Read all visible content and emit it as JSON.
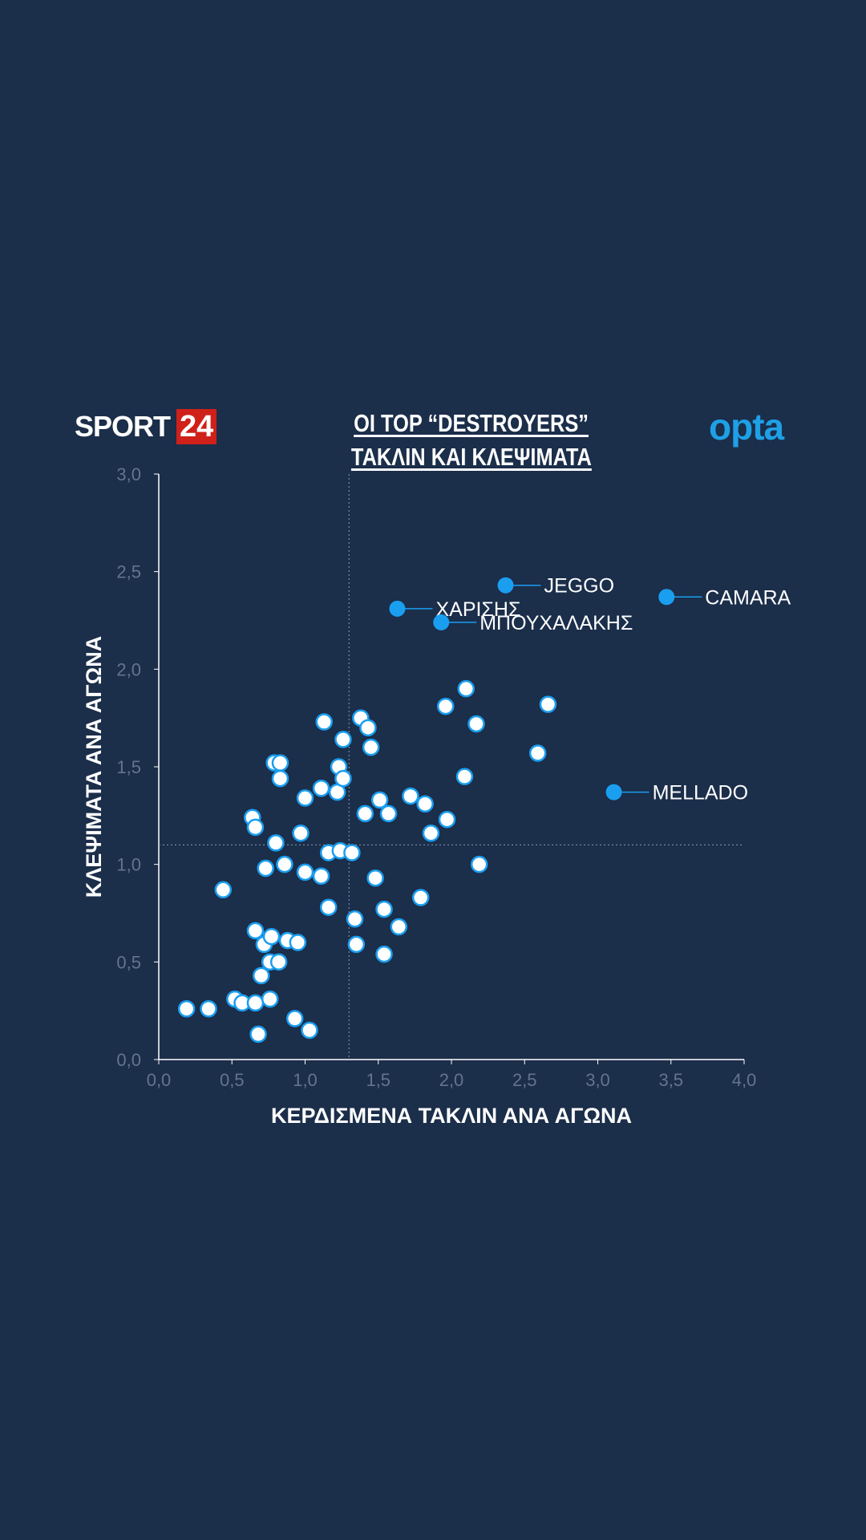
{
  "header": {
    "logo_sport": "SPORT",
    "logo_num": "24",
    "title_line1": "ΟΙ TOP “DESTROYERS”",
    "title_line2": "ΤΑΚΛΙΝ ΚΑΙ ΚΛΕΨΙΜΑΤΑ",
    "opta": "opta"
  },
  "chart_data": {
    "type": "scatter",
    "title": "ΟΙ TOP “DESTROYERS” ΤΑΚΛΙΝ ΚΑΙ ΚΛΕΨΙΜΑΤΑ",
    "xlabel": "ΚΕΡΔΙΣΜΕΝΑ ΤΑΚΛΙΝ ΑΝΑ ΑΓΩΝΑ",
    "ylabel": "ΚΛΕΨΙΜΑΤΑ ΑΝΑ ΑΓΩΝΑ",
    "xlim": [
      0,
      4
    ],
    "ylim": [
      0,
      3
    ],
    "xticks": [
      "0,0",
      "0,5",
      "1,0",
      "1,5",
      "2,0",
      "2,5",
      "3,0",
      "3,5",
      "4,0"
    ],
    "yticks": [
      "0,0",
      "0,5",
      "1,0",
      "1,5",
      "2,0",
      "2,5",
      "3,0"
    ],
    "reference_lines": {
      "x": 1.3,
      "y": 1.1
    },
    "colors": {
      "point_fill": "#ffffff",
      "point_stroke": "#1a9ef0",
      "highlight": "#1a9ef0",
      "background": "#1b2e4a"
    },
    "points": [
      [
        0.19,
        0.26
      ],
      [
        0.34,
        0.26
      ],
      [
        0.44,
        0.87
      ],
      [
        0.52,
        0.31
      ],
      [
        0.57,
        0.29
      ],
      [
        0.66,
        0.29
      ],
      [
        0.68,
        0.13
      ],
      [
        0.76,
        0.31
      ],
      [
        0.7,
        0.43
      ],
      [
        0.76,
        0.5
      ],
      [
        0.82,
        0.5
      ],
      [
        0.72,
        0.59
      ],
      [
        0.66,
        0.66
      ],
      [
        0.77,
        0.63
      ],
      [
        0.88,
        0.61
      ],
      [
        0.95,
        0.6
      ],
      [
        0.93,
        0.21
      ],
      [
        1.03,
        0.15
      ],
      [
        0.73,
        0.98
      ],
      [
        0.86,
        1.0
      ],
      [
        1.0,
        0.96
      ],
      [
        1.11,
        0.94
      ],
      [
        0.8,
        1.11
      ],
      [
        0.97,
        1.16
      ],
      [
        0.64,
        1.24
      ],
      [
        0.66,
        1.19
      ],
      [
        0.79,
        1.52
      ],
      [
        0.83,
        1.52
      ],
      [
        0.83,
        1.44
      ],
      [
        1.0,
        1.34
      ],
      [
        1.11,
        1.39
      ],
      [
        1.22,
        1.37
      ],
      [
        1.23,
        1.5
      ],
      [
        1.26,
        1.44
      ],
      [
        1.13,
        1.73
      ],
      [
        1.26,
        1.64
      ],
      [
        1.38,
        1.75
      ],
      [
        1.43,
        1.7
      ],
      [
        1.45,
        1.6
      ],
      [
        1.16,
        1.06
      ],
      [
        1.24,
        1.07
      ],
      [
        1.32,
        1.06
      ],
      [
        1.16,
        0.78
      ],
      [
        1.34,
        0.72
      ],
      [
        1.35,
        0.59
      ],
      [
        1.48,
        0.93
      ],
      [
        1.41,
        1.26
      ],
      [
        1.51,
        1.33
      ],
      [
        1.57,
        1.26
      ],
      [
        1.54,
        0.77
      ],
      [
        1.64,
        0.68
      ],
      [
        1.54,
        0.54
      ],
      [
        1.72,
        1.35
      ],
      [
        1.82,
        1.31
      ],
      [
        1.86,
        1.16
      ],
      [
        1.97,
        1.23
      ],
      [
        1.79,
        0.83
      ],
      [
        1.96,
        1.81
      ],
      [
        2.1,
        1.9
      ],
      [
        2.17,
        1.72
      ],
      [
        2.09,
        1.45
      ],
      [
        2.19,
        1.0
      ],
      [
        2.59,
        1.57
      ],
      [
        2.66,
        1.82
      ]
    ],
    "highlighted": [
      {
        "name": "JEGGO",
        "x": 2.37,
        "y": 2.43
      },
      {
        "name": "CAMARA",
        "x": 3.47,
        "y": 2.37
      },
      {
        "name": "ΧΑΡΙΣΗΣ",
        "x": 1.63,
        "y": 2.31
      },
      {
        "name": "ΜΠΟΥΧΑΛΑΚΗΣ",
        "x": 1.93,
        "y": 2.24
      },
      {
        "name": "MELLADO",
        "x": 3.11,
        "y": 1.37
      }
    ]
  }
}
